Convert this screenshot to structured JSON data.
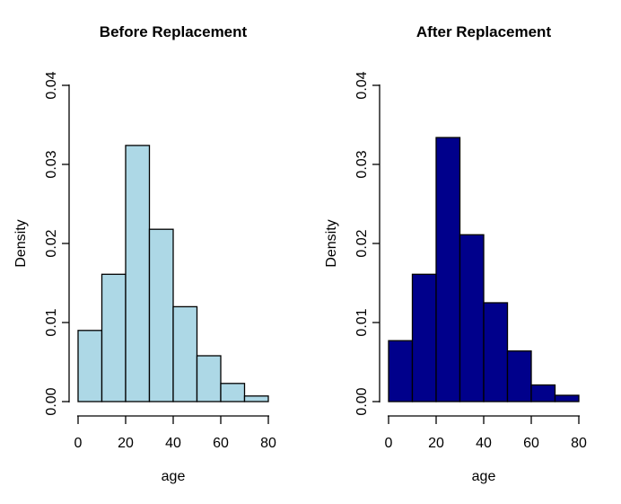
{
  "page": {
    "background_color": "#ffffff",
    "figure_width": 692,
    "figure_height": 561
  },
  "chart_data": [
    {
      "type": "bar",
      "subtype": "histogram",
      "title": "Before Replacement",
      "xlabel": "age",
      "ylabel": "Density",
      "bar_color": "#ADD8E6",
      "bar_border_color": "#000000",
      "bin_edges": [
        0,
        10,
        20,
        30,
        40,
        50,
        60,
        70,
        80
      ],
      "categories": [
        "0-10",
        "10-20",
        "20-30",
        "30-40",
        "40-50",
        "50-60",
        "60-70",
        "70-80"
      ],
      "values": [
        0.009,
        0.0161,
        0.0324,
        0.0218,
        0.012,
        0.0058,
        0.0023,
        0.0007
      ],
      "xlim": [
        0,
        80
      ],
      "ylim": [
        0,
        0.04
      ],
      "x_tick_values": [
        0,
        20,
        40,
        60,
        80
      ],
      "x_tick_labels": [
        "0",
        "20",
        "40",
        "60",
        "80"
      ],
      "y_tick_values": [
        0,
        0.01,
        0.02,
        0.03,
        0.04
      ],
      "y_tick_labels": [
        "0.00",
        "0.01",
        "0.02",
        "0.03",
        "0.04"
      ],
      "grid": false,
      "legend": false
    },
    {
      "type": "bar",
      "subtype": "histogram",
      "title": "After Replacement",
      "xlabel": "age",
      "ylabel": "Density",
      "bar_color": "#00008B",
      "bar_border_color": "#000000",
      "bin_edges": [
        0,
        10,
        20,
        30,
        40,
        50,
        60,
        70,
        80
      ],
      "categories": [
        "0-10",
        "10-20",
        "20-30",
        "30-40",
        "40-50",
        "50-60",
        "60-70",
        "70-80"
      ],
      "values": [
        0.0077,
        0.0161,
        0.0334,
        0.0211,
        0.0125,
        0.0064,
        0.0021,
        0.0008
      ],
      "xlim": [
        0,
        80
      ],
      "ylim": [
        0,
        0.04
      ],
      "x_tick_values": [
        0,
        20,
        40,
        60,
        80
      ],
      "x_tick_labels": [
        "0",
        "20",
        "40",
        "60",
        "80"
      ],
      "y_tick_values": [
        0,
        0.01,
        0.02,
        0.03,
        0.04
      ],
      "y_tick_labels": [
        "0.00",
        "0.01",
        "0.02",
        "0.03",
        "0.04"
      ],
      "grid": false,
      "legend": false
    }
  ]
}
